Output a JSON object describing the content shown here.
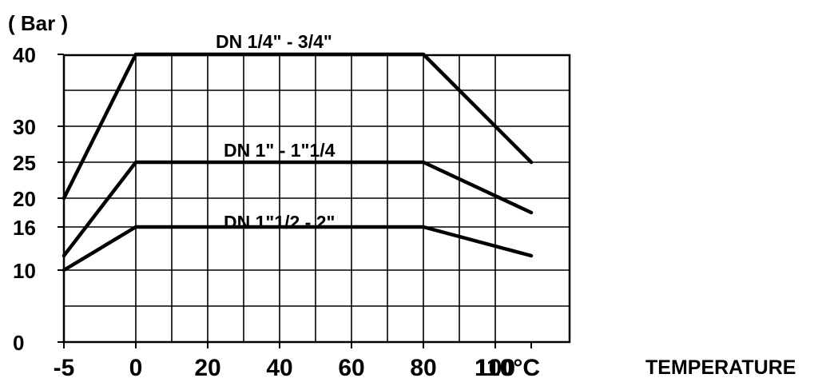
{
  "chart_data": {
    "type": "line",
    "ylabel": "( Bar )",
    "xlabel": "TEMPERATURE",
    "x_unit": "°C",
    "x_ticks": [
      -5,
      0,
      20,
      40,
      60,
      80,
      100,
      110
    ],
    "x_tick_labels": [
      "-5",
      "0",
      "20",
      "40",
      "60",
      "80",
      "100",
      "110°C"
    ],
    "y_ticks": [
      0,
      10,
      16,
      20,
      25,
      30,
      40
    ],
    "y_tick_labels": [
      "0",
      "10",
      "16",
      "20",
      "25",
      "30",
      "40"
    ],
    "xlim": [
      -5,
      110
    ],
    "ylim": [
      0,
      40
    ],
    "grid": true,
    "series": [
      {
        "name": "DN 1/4\" - 3/4\"",
        "x": [
          -5,
          0,
          80,
          110
        ],
        "y": [
          20,
          40,
          40,
          25
        ]
      },
      {
        "name": "DN 1\" - 1\"1/4",
        "x": [
          -5,
          0,
          80,
          110
        ],
        "y": [
          12,
          25,
          25,
          18
        ]
      },
      {
        "name": "DN 1\"1/2 - 2\"",
        "x": [
          -5,
          0,
          80,
          110
        ],
        "y": [
          10,
          16,
          16,
          12
        ]
      }
    ]
  }
}
